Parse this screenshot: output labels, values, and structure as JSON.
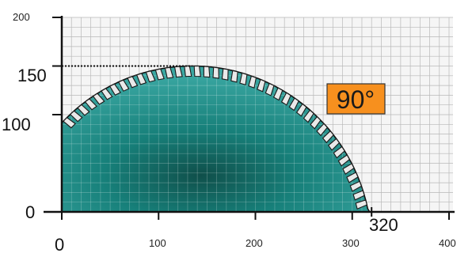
{
  "colors": {
    "grid_background": "#f5f5f5",
    "grid_line": "#b8b8b8",
    "axis": "#111111",
    "blade_dark": "#0f4f4a",
    "blade_mid": "#17807a",
    "blade_light": "#3aa7a2",
    "tooth": "#e9e9e9",
    "badge_fill": "#f7901e",
    "badge_text": "#1a1a1a"
  },
  "axes": {
    "y_ticks": [
      {
        "value": 200,
        "label": "200"
      },
      {
        "value": 150,
        "label": "150"
      },
      {
        "value": 100,
        "label": "100"
      },
      {
        "value": 0,
        "label": "0"
      }
    ],
    "x_ticks": [
      {
        "value": 0,
        "label": "0"
      },
      {
        "value": 100,
        "label": "100"
      },
      {
        "value": 200,
        "label": "200"
      },
      {
        "value": 300,
        "label": "300"
      },
      {
        "value": 400,
        "label": "400"
      }
    ],
    "x_extra_label": "320",
    "xlim": [
      0,
      400
    ],
    "ylim": [
      0,
      200
    ]
  },
  "blade": {
    "center_x": 135,
    "radius": 185,
    "max_height": 150,
    "right_edge": 320,
    "tooth_icon": "saw-tooth-icon"
  },
  "angle_badge": {
    "label": "90°"
  },
  "dotted_reference_height": 150
}
